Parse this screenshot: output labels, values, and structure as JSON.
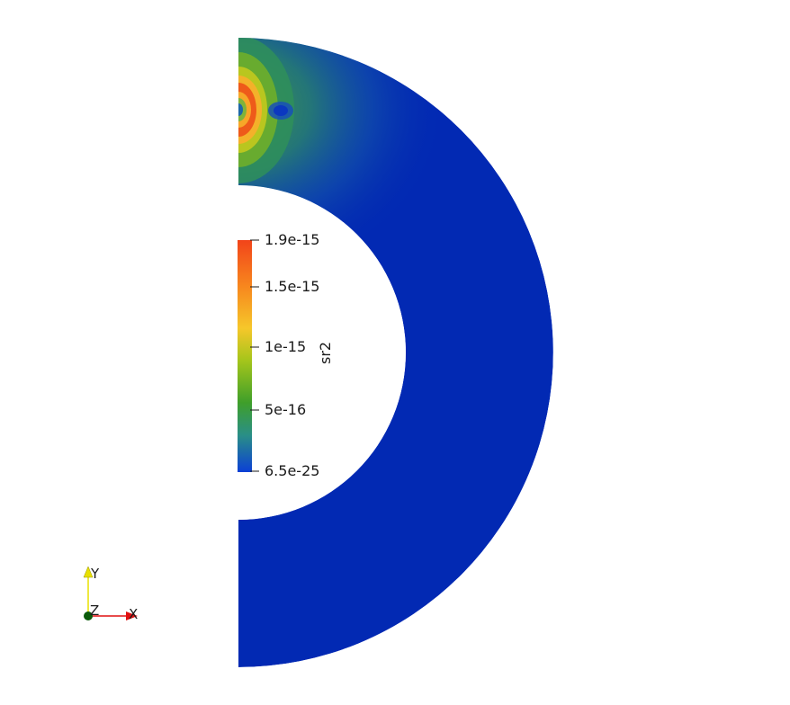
{
  "colorbar": {
    "title": "sr2",
    "ticks": [
      "1.9e-15",
      "1.5e-15",
      "1e-15",
      "5e-16",
      "6.5e-25"
    ],
    "tick_values": [
      1.9e-15,
      1.5e-15,
      1e-15,
      5e-16,
      6.5e-25
    ],
    "range": [
      6.5e-25,
      1.9e-15
    ],
    "colormap": [
      "#0b3fd6",
      "#2a8f86",
      "#3f9f2a",
      "#a4c51b",
      "#f6c72a",
      "#f7871e",
      "#f2441a"
    ]
  },
  "orientation_axes": {
    "x_label": "X",
    "y_label": "Y",
    "z_label": "Z",
    "x_color": "#e01010",
    "y_color": "#e8e000",
    "z_color": "#0a5a0a"
  },
  "field": {
    "base_color": "#0229b3",
    "hotspot_colors": [
      "#f2441a",
      "#f7871e",
      "#f6c72a",
      "#a4c51b",
      "#3f9f2a",
      "#2a8f86"
    ]
  }
}
